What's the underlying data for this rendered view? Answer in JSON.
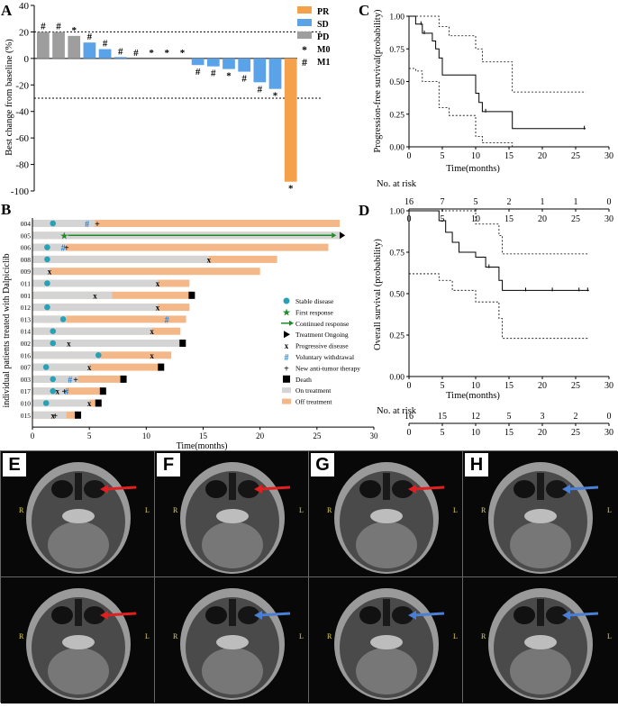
{
  "panel_labels": {
    "A": "A",
    "B": "B",
    "C": "C",
    "D": "D",
    "E": "E",
    "F": "F",
    "G": "G",
    "H": "H"
  },
  "panel_a": {
    "ylabel": "Best change from baseline (%)",
    "yticks": [
      "40",
      "20",
      "0",
      "-20",
      "-40",
      "-60",
      "-80",
      "-100"
    ],
    "legend": [
      {
        "label": "PR",
        "color": "#f5a04a"
      },
      {
        "label": "SD",
        "color": "#5aa3e8"
      },
      {
        "label": "PD",
        "color": "#9e9e9e"
      },
      {
        "label": "M0",
        "symbol": "*"
      },
      {
        "label": "M1",
        "symbol": "#"
      }
    ]
  },
  "panel_b": {
    "ylabel": "individual patients treated with Dalpiciclib",
    "xlabel": "Time(months)",
    "xticks": [
      "0",
      "5",
      "10",
      "15",
      "20",
      "25",
      "30"
    ],
    "legend": [
      {
        "label": "Stable disease"
      },
      {
        "label": "First response"
      },
      {
        "label": "Continued response"
      },
      {
        "label": "Treatment Ongoing"
      },
      {
        "label": "Progressive disease"
      },
      {
        "label": "Voluntary withdrawal"
      },
      {
        "label": "New anti-tumor therapy"
      },
      {
        "label": "Death"
      },
      {
        "label": "On treatment"
      },
      {
        "label": "Off treatment"
      }
    ]
  },
  "panel_c": {
    "ylabel": "Progression-free survival(probability)",
    "xlabel": "Time(months)",
    "yticks": [
      "1.00",
      "0.75",
      "0.50",
      "0.25",
      "0.00"
    ],
    "xticks": [
      "0",
      "5",
      "10",
      "15",
      "20",
      "25",
      "30"
    ],
    "risk_title": "No. at risk",
    "risk": [
      "16",
      "7",
      "5",
      "2",
      "1",
      "1",
      "0"
    ]
  },
  "panel_d": {
    "ylabel": "Overall survival (probability)",
    "xlabel": "Time(months)",
    "yticks": [
      "1.00",
      "0.75",
      "0.50",
      "0.25",
      "0.00"
    ],
    "xticks": [
      "0",
      "5",
      "10",
      "15",
      "20",
      "25",
      "30"
    ],
    "risk_title": "No. at risk",
    "risk": [
      "16",
      "15",
      "12",
      "5",
      "3",
      "2",
      "0"
    ]
  },
  "chart_data": [
    {
      "type": "bar",
      "title": "A",
      "ylabel": "Best change from baseline (%)",
      "ylim": [
        -100,
        40
      ],
      "reference_lines": [
        20,
        -30
      ],
      "values": [
        20,
        20,
        17,
        12,
        7,
        1,
        0,
        0,
        0,
        0,
        -5,
        -6,
        -8,
        -10,
        -18,
        -23,
        -93
      ],
      "categories_response": [
        "PD",
        "PD",
        "PD",
        "SD",
        "SD",
        "SD",
        "SD",
        "SD",
        "SD",
        "SD",
        "SD",
        "SD",
        "SD",
        "SD",
        "SD",
        "SD",
        "PR"
      ],
      "markers": [
        "#",
        "#",
        "*",
        "#",
        "#",
        "#",
        "#",
        "*",
        "*",
        "*",
        "#",
        "#",
        "*",
        "#",
        "#",
        "*",
        "*"
      ]
    },
    {
      "type": "swimmer",
      "title": "B",
      "xlabel": "Time(months)",
      "xlim": [
        0,
        30
      ],
      "patients": [
        "004",
        "005",
        "006",
        "008",
        "009",
        "011",
        "001",
        "012",
        "013",
        "014",
        "002",
        "016",
        "007",
        "003",
        "017",
        "010",
        "015"
      ],
      "on_treatment_end": [
        5.5,
        27,
        3,
        15.5,
        1.5,
        11,
        7,
        11,
        3,
        10.5,
        13.5,
        6,
        5,
        4,
        3,
        5,
        3
      ],
      "total_duration": [
        27,
        27,
        26,
        21.5,
        20,
        13.8,
        14,
        13.8,
        13.5,
        13,
        13.2,
        12.2,
        11.3,
        8,
        6.2,
        5.8,
        4
      ],
      "stable_disease": [
        1.8,
        null,
        1.3,
        1.3,
        null,
        1.3,
        null,
        1.3,
        2.7,
        1.8,
        1.8,
        5.8,
        1.2,
        1.8,
        1.8,
        1.2,
        null
      ],
      "first_response": [
        null,
        2.8,
        null,
        null,
        null,
        null,
        null,
        null,
        null,
        null,
        null,
        null,
        null,
        null,
        null,
        null,
        null
      ],
      "progressive_disease": [
        null,
        null,
        null,
        15.5,
        1.5,
        11,
        5.5,
        11,
        null,
        10.5,
        3.2,
        10.5,
        5,
        null,
        2.2,
        5,
        1.8
      ],
      "voluntary_withdrawal": [
        4.8,
        null,
        2.7,
        null,
        null,
        null,
        null,
        null,
        11.8,
        null,
        null,
        null,
        null,
        3.3,
        3.0,
        null,
        null
      ],
      "new_therapy": [
        5.7,
        null,
        3.0,
        null,
        null,
        null,
        null,
        null,
        null,
        null,
        null,
        null,
        null,
        3.8,
        2.8,
        null,
        2.0
      ],
      "death": [
        null,
        null,
        null,
        null,
        null,
        null,
        14,
        null,
        null,
        null,
        13.2,
        null,
        11.3,
        8,
        6.2,
        5.8,
        4
      ]
    },
    {
      "type": "line",
      "title": "C",
      "xlabel": "Time(months)",
      "ylabel": "Progression-free survival(probability)",
      "xlim": [
        0,
        30
      ],
      "ylim": [
        0,
        1
      ],
      "series": [
        {
          "name": "estimate",
          "x": [
            0,
            1,
            2,
            3.5,
            4,
            4.5,
            5,
            6,
            10,
            10.5,
            11,
            11.5,
            15.5,
            26.5
          ],
          "y": [
            1,
            0.94,
            0.87,
            0.81,
            0.75,
            0.68,
            0.55,
            0.55,
            0.41,
            0.34,
            0.27,
            0.27,
            0.14,
            0.14
          ]
        },
        {
          "name": "upper CI",
          "x": [
            0,
            2,
            4.5,
            6,
            10,
            11,
            15.5,
            26.5
          ],
          "y": [
            1,
            1,
            0.92,
            0.85,
            0.75,
            0.65,
            0.42,
            0.42
          ]
        },
        {
          "name": "lower CI",
          "x": [
            0,
            1,
            2,
            4.5,
            6,
            10,
            11,
            15.5,
            26.5
          ],
          "y": [
            0.6,
            0.58,
            0.5,
            0.3,
            0.24,
            0.08,
            0.03,
            0,
            0
          ]
        }
      ]
    },
    {
      "type": "line",
      "title": "D",
      "xlabel": "Time(months)",
      "ylabel": "Overall survival (probability)",
      "xlim": [
        0,
        30
      ],
      "ylim": [
        0,
        1
      ],
      "series": [
        {
          "name": "estimate",
          "x": [
            0,
            4.5,
            5.5,
            6.5,
            7.5,
            10,
            11.5,
            13.5,
            14,
            27
          ],
          "y": [
            1,
            0.94,
            0.87,
            0.81,
            0.75,
            0.72,
            0.66,
            0.58,
            0.52,
            0.52
          ]
        },
        {
          "name": "upper CI",
          "x": [
            0,
            6.5,
            10,
            13.5,
            14,
            27
          ],
          "y": [
            1,
            1,
            0.92,
            0.85,
            0.74,
            0.74
          ]
        },
        {
          "name": "lower CI",
          "x": [
            0,
            4.5,
            6.5,
            10,
            13.5,
            14,
            27
          ],
          "y": [
            0.62,
            0.58,
            0.52,
            0.45,
            0.35,
            0.23,
            0.23
          ]
        }
      ]
    }
  ]
}
